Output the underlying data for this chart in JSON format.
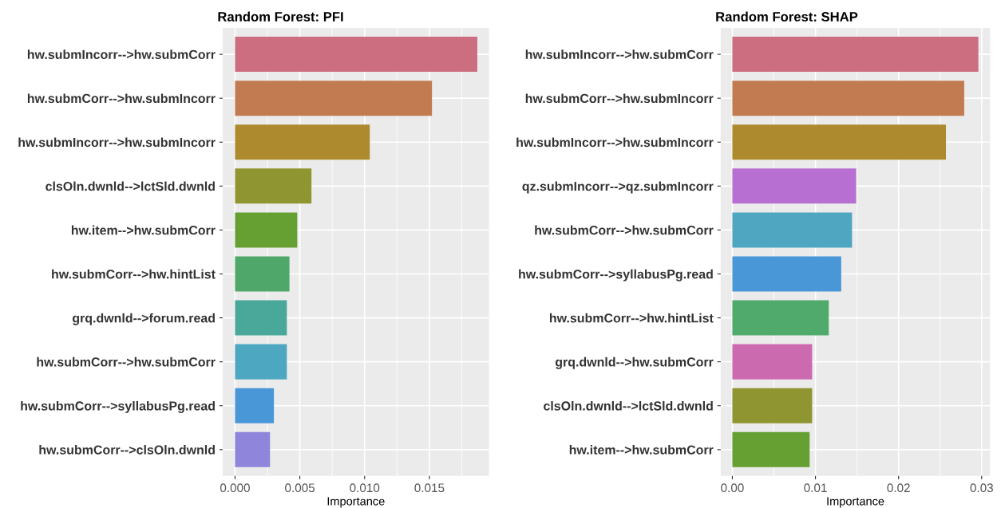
{
  "chart_data": [
    {
      "type": "bar",
      "orientation": "horizontal",
      "title": "Random Forest: PFI",
      "xlabel": "Importance",
      "categories": [
        "hw.submIncorr-->hw.submCorr",
        "hw.submCorr-->hw.submIncorr",
        "hw.submIncorr-->hw.submIncorr",
        "clsOln.dwnld-->lctSld.dwnld",
        "hw.item-->hw.submCorr",
        "hw.submCorr-->hw.hintList",
        "grq.dwnld-->forum.read",
        "hw.submCorr-->hw.submCorr",
        "hw.submCorr-->syllabusPg.read",
        "hw.submCorr-->clsOln.dwnld"
      ],
      "values": [
        0.0187,
        0.0152,
        0.0104,
        0.0059,
        0.0048,
        0.0042,
        0.004,
        0.004,
        0.003,
        0.0027
      ],
      "colors": [
        "#cc6d80",
        "#c27b50",
        "#ad8a2e",
        "#8f9531",
        "#66a032",
        "#4fa86a",
        "#4aa89a",
        "#4ea7c0",
        "#4a97d8",
        "#8f85db"
      ],
      "xlim": [
        -0.00095,
        0.0196
      ],
      "xticks": [
        {
          "value": 0,
          "label": "0.000"
        },
        {
          "value": 0.005,
          "label": "0.005"
        },
        {
          "value": 0.01,
          "label": "0.010"
        },
        {
          "value": 0.015,
          "label": "0.015"
        }
      ],
      "grid": true
    },
    {
      "type": "bar",
      "orientation": "horizontal",
      "title": "Random Forest: SHAP",
      "xlabel": "Importance",
      "categories": [
        "hw.submIncorr-->hw.submCorr",
        "hw.submCorr-->hw.submIncorr",
        "hw.submIncorr-->hw.submIncorr",
        "qz.submIncorr-->qz.submIncorr",
        "hw.submCorr-->hw.submCorr",
        "hw.submCorr-->syllabusPg.read",
        "hw.submCorr-->hw.hintList",
        "grq.dwnld-->hw.submCorr",
        "clsOln.dwnld-->lctSld.dwnld",
        "hw.item-->hw.submCorr"
      ],
      "values": [
        0.0296,
        0.0279,
        0.0257,
        0.0149,
        0.0144,
        0.0131,
        0.0116,
        0.0096,
        0.0096,
        0.0093
      ],
      "colors": [
        "#cc6d80",
        "#c27b50",
        "#ad8a2e",
        "#b86fd2",
        "#4fa6c0",
        "#4a97d8",
        "#50aa6c",
        "#cc6ab0",
        "#8f9531",
        "#66a032"
      ],
      "xlim": [
        -0.0014,
        0.031
      ],
      "xticks": [
        {
          "value": 0,
          "label": "0.00"
        },
        {
          "value": 0.01,
          "label": "0.01"
        },
        {
          "value": 0.02,
          "label": "0.02"
        },
        {
          "value": 0.03,
          "label": "0.03"
        }
      ],
      "grid": true
    }
  ]
}
